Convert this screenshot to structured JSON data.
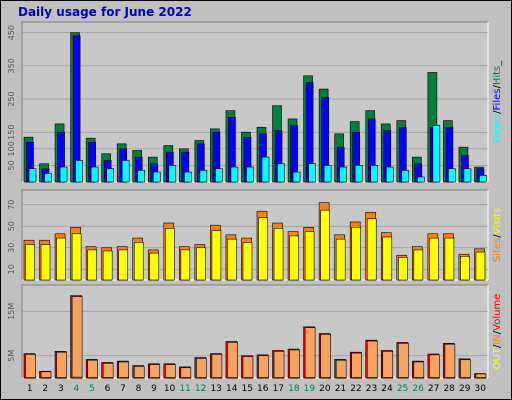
{
  "title": "Daily usage for June 2022",
  "colors": {
    "hits": "#008040",
    "files": "#0000ff",
    "pages": "#00ffff",
    "visits": "#ff8000",
    "sites": "#ffff00",
    "volume": "#ff0000",
    "in": "#ff8000",
    "out": "#ffff00",
    "weekday_label": "#000000",
    "weekend_label": "#00805c",
    "title": "#0000cc",
    "frame": "#c0c0c0",
    "plot_bg": "#c8c8c8"
  },
  "chart_data": [
    {
      "type": "bar",
      "name": "pages-files-hits",
      "x": [
        1,
        2,
        3,
        4,
        5,
        6,
        7,
        8,
        9,
        10,
        11,
        12,
        13,
        14,
        15,
        16,
        17,
        18,
        19,
        20,
        21,
        22,
        23,
        24,
        25,
        26,
        27,
        28,
        29,
        30
      ],
      "weekend_days": [
        4,
        5,
        11,
        12,
        18,
        19,
        25,
        26
      ],
      "yticks": [
        50,
        100,
        150,
        250,
        350,
        450
      ],
      "ylim": [
        0,
        470
      ],
      "legend": [
        {
          "text": "Hits",
          "color": "#008040"
        },
        {
          "text": "Files",
          "color": "#0000ff"
        },
        {
          "text": "Pages",
          "color": "#00ffff"
        }
      ],
      "legend_separator": "/",
      "legend_trailing": "_",
      "series": [
        {
          "name": "Hits",
          "values": [
            135,
            55,
            175,
            450,
            132,
            85,
            115,
            95,
            75,
            110,
            100,
            125,
            160,
            215,
            150,
            165,
            230,
            190,
            320,
            280,
            145,
            182,
            215,
            175,
            185,
            75,
            330,
            185,
            105,
            45
          ]
        },
        {
          "name": "Files",
          "values": [
            120,
            40,
            150,
            440,
            120,
            65,
            100,
            75,
            55,
            90,
            90,
            115,
            150,
            195,
            135,
            145,
            155,
            170,
            300,
            255,
            105,
            150,
            190,
            155,
            165,
            55,
            165,
            165,
            80,
            40
          ]
        },
        {
          "name": "Pages",
          "values": [
            40,
            25,
            45,
            65,
            45,
            40,
            65,
            35,
            30,
            50,
            30,
            35,
            40,
            45,
            45,
            75,
            55,
            30,
            55,
            50,
            45,
            50,
            50,
            45,
            35,
            15,
            170,
            40,
            40,
            20
          ]
        }
      ]
    },
    {
      "type": "bar",
      "name": "visits-sites",
      "x": [
        1,
        2,
        3,
        4,
        5,
        6,
        7,
        8,
        9,
        10,
        11,
        12,
        13,
        14,
        15,
        16,
        17,
        18,
        19,
        20,
        21,
        22,
        23,
        24,
        25,
        26,
        27,
        28,
        29,
        30
      ],
      "yticks": [
        10,
        30,
        50,
        70
      ],
      "ylim": [
        0,
        80
      ],
      "legend": [
        {
          "text": "Visits",
          "color": "#ffff00"
        },
        {
          "text": "Sites",
          "color": "#ff8000"
        }
      ],
      "legend_separator": "/",
      "series": [
        {
          "name": "Visits",
          "values": [
            37,
            37,
            43,
            49,
            31,
            30,
            31,
            39,
            28,
            53,
            31,
            33,
            51,
            42,
            39,
            64,
            53,
            45,
            49,
            72,
            42,
            54,
            63,
            44,
            23,
            31,
            43,
            43,
            24,
            29
          ]
        },
        {
          "name": "Sites",
          "values": [
            33,
            33,
            39,
            43,
            28,
            27,
            28,
            35,
            25,
            48,
            28,
            30,
            46,
            38,
            35,
            58,
            48,
            41,
            45,
            65,
            38,
            49,
            57,
            40,
            21,
            28,
            39,
            39,
            22,
            26
          ]
        }
      ]
    },
    {
      "type": "bar",
      "name": "volume-in-out",
      "x": [
        1,
        2,
        3,
        4,
        5,
        6,
        7,
        8,
        9,
        10,
        11,
        12,
        13,
        14,
        15,
        16,
        17,
        18,
        19,
        20,
        21,
        22,
        23,
        24,
        25,
        26,
        27,
        28,
        29,
        30
      ],
      "yticks": [
        5,
        15
      ],
      "ytick_labels": [
        "5M",
        "15M"
      ],
      "ylim": [
        0,
        20
      ],
      "legend": [
        {
          "text": "Volume",
          "color": "#ff0000"
        },
        {
          "text": "IN",
          "color": "#ff8000"
        },
        {
          "text": "OUT",
          "color": "#ffff00"
        }
      ],
      "legend_separator": "/",
      "series": [
        {
          "name": "Volume",
          "values": [
            5.5,
            1.5,
            6.0,
            18.5,
            4.2,
            3.5,
            3.8,
            2.8,
            3.2,
            3.2,
            2.5,
            4.6,
            5.5,
            8.2,
            5.0,
            5.2,
            6.2,
            6.5,
            11.5,
            10.0,
            4.2,
            5.8,
            8.5,
            6.2,
            8.0,
            3.8,
            5.4,
            7.8,
            4.3,
            1.0
          ]
        },
        {
          "name": "IN",
          "values": [
            5.3,
            1.4,
            5.8,
            18.3,
            4.0,
            3.3,
            3.6,
            2.6,
            3.0,
            3.0,
            2.3,
            4.4,
            5.3,
            8.0,
            4.8,
            5.0,
            6.0,
            6.3,
            11.3,
            9.8,
            4.0,
            5.6,
            8.3,
            6.0,
            7.8,
            3.6,
            5.2,
            7.6,
            4.1,
            0.9
          ]
        },
        {
          "name": "OUT",
          "values": [
            0.1,
            0.1,
            0.1,
            0.2,
            0.1,
            0.1,
            0.1,
            0.1,
            0.1,
            0.1,
            0.1,
            0.1,
            0.1,
            0.1,
            0.1,
            0.1,
            0.1,
            0.1,
            0.1,
            0.1,
            0.1,
            0.1,
            0.1,
            0.1,
            0.1,
            0.1,
            0.1,
            0.1,
            0.1,
            0.1
          ]
        }
      ]
    }
  ]
}
